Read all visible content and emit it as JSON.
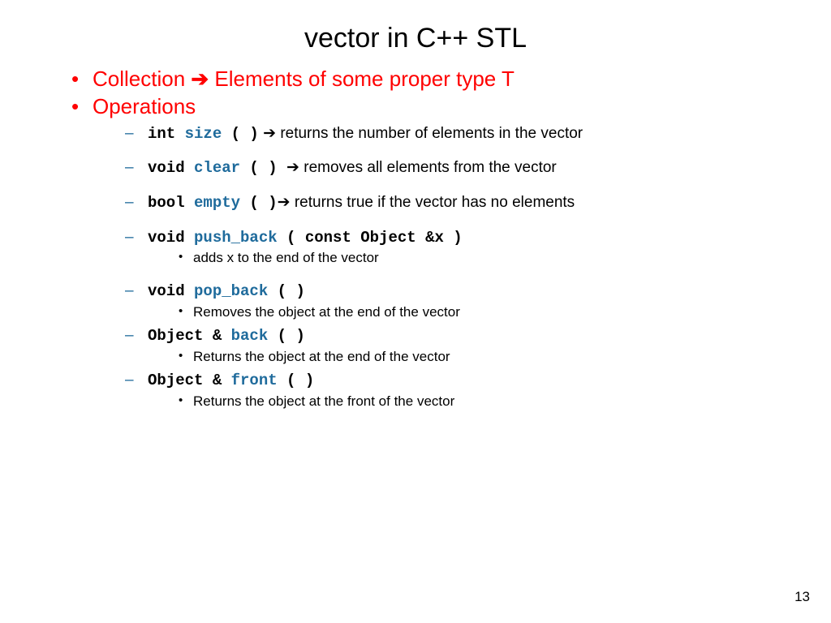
{
  "title": "vector in C++ STL",
  "bullet1_pre": "Collection ",
  "bullet1_arrow": "➔",
  "bullet1_post": " Elements of some proper type T",
  "bullet2": "Operations",
  "ops": {
    "size": {
      "ret": "int ",
      "name": "size",
      "paren": " ( )",
      "arrow": " ➔ ",
      "desc": "returns the number of elements in the vector"
    },
    "clear": {
      "ret": "void ",
      "name": "clear",
      "paren": " ( ) ",
      "arrow": " ➔ ",
      "desc": "removes all elements from the vector"
    },
    "empty": {
      "ret": "bool ",
      "name": "empty",
      "paren": " ( )",
      "arrow": "➔ ",
      "desc": "returns true if the vector has no elements"
    },
    "push_back": {
      "ret": "void ",
      "name": "push_back",
      "paren": " ( const Object &x )",
      "sub": "adds x to the end of the vector"
    },
    "pop_back": {
      "ret": "void ",
      "name": "pop_back",
      "paren": " ( )",
      "sub": "Removes the object at the end of the vector"
    },
    "back": {
      "ret": "Object & ",
      "name": "back",
      "paren": " ( )",
      "sub": "Returns the object at the end of the vector"
    },
    "front": {
      "ret": "Object & ",
      "name": "front",
      "paren": " ( )",
      "sub": "Returns the object at the front of the vector"
    }
  },
  "page_number": "13"
}
